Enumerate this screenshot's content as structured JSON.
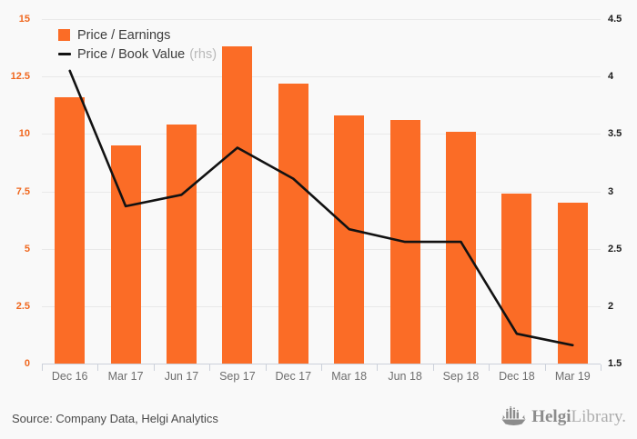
{
  "chart_data": {
    "type": "bar",
    "subtype": "bar-line-combo",
    "title": "",
    "xlabel": "",
    "categories": [
      "Dec 16",
      "Mar 17",
      "Jun 17",
      "Sep 17",
      "Dec 17",
      "Mar 18",
      "Jun 18",
      "Sep 18",
      "Dec 18",
      "Mar 19"
    ],
    "series": [
      {
        "name": "Price / Earnings",
        "type": "bar",
        "axis": "left",
        "values": [
          11.6,
          9.5,
          10.4,
          13.8,
          12.2,
          10.8,
          10.6,
          10.1,
          7.4,
          7.0
        ]
      },
      {
        "name": "Price / Book Value",
        "type": "line",
        "axis": "right",
        "note": "(rhs)",
        "values": [
          4.05,
          2.87,
          2.97,
          3.38,
          3.11,
          2.67,
          2.56,
          2.56,
          1.76,
          1.66
        ]
      }
    ],
    "left_axis": {
      "min": 0,
      "max": 15,
      "tick_values": [
        0,
        2.5,
        5,
        7.5,
        10,
        12.5,
        15
      ],
      "tick_labels": [
        "0",
        "2.5",
        "5",
        "7.5",
        "10",
        "12.5",
        "15"
      ]
    },
    "right_axis": {
      "min": 1.5,
      "max": 4.5,
      "tick_values": [
        1.5,
        2,
        2.5,
        3,
        3.5,
        4,
        4.5
      ],
      "tick_labels": [
        "1.5",
        "2",
        "2.5",
        "3",
        "3.5",
        "4",
        "4.5"
      ]
    },
    "grid": true,
    "legend_position": "top-left"
  },
  "legend": {
    "bar_label": "Price / Earnings",
    "line_label": "Price / Book Value",
    "line_label_note": "(rhs)"
  },
  "footer": {
    "source": "Source: Company Data, Helgi Analytics",
    "logo_bold": "Helgi",
    "logo_light": "Library."
  },
  "colors": {
    "bar": "#fb6c26",
    "line": "#121212",
    "left_ticks": "#f0681f",
    "right_ticks": "#1c1c1c",
    "x_ticks": "#6e6e6e",
    "grid": "#e9e9e9",
    "axis": "#ccd1da",
    "background": "#f9f9f9",
    "logo_gray": "#8c8c8c"
  }
}
